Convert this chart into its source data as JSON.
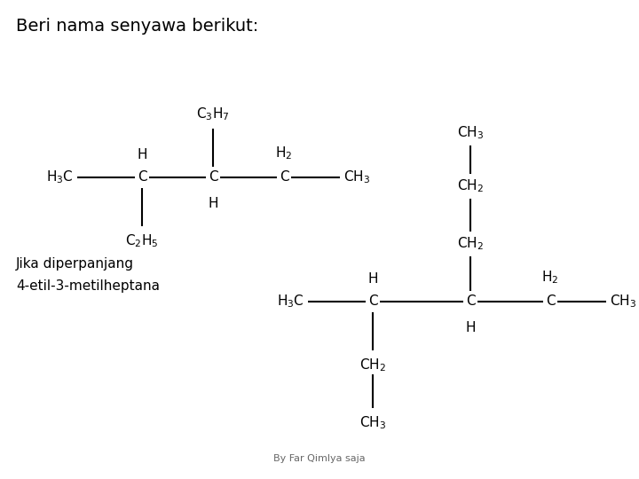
{
  "title": "Beri nama senyawa berikut:",
  "title_fontsize": 14,
  "label_fontsize": 11,
  "footer": "By Far Qimlya saja",
  "footer_fontsize": 8,
  "answer_line1": "Jika diperpanjang",
  "answer_line2": "4-etil-3-metilheptana",
  "answer_fontsize": 11,
  "bg_color": "#ffffff",
  "text_color": "#000000",
  "line_color": "#000000",
  "line_width": 1.5
}
